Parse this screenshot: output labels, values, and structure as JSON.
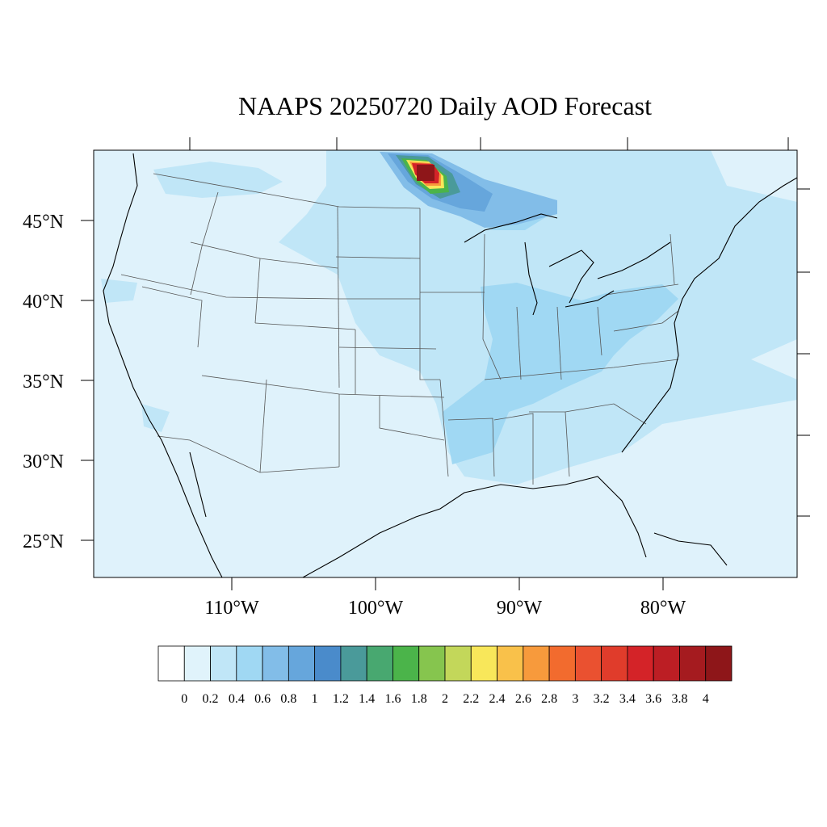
{
  "title": "NAAPS 20250720 Daily AOD Forecast",
  "map": {
    "lat_labels": [
      {
        "value": 45,
        "label": "45°N"
      },
      {
        "value": 40,
        "label": "40°N"
      },
      {
        "value": 35,
        "label": "35°N"
      },
      {
        "value": 30,
        "label": "30°N"
      },
      {
        "value": 25,
        "label": "25°N"
      }
    ],
    "lon_labels": [
      {
        "value": -110,
        "label": "110°W"
      },
      {
        "value": -100,
        "label": "100°W"
      },
      {
        "value": -90,
        "label": "90°W"
      },
      {
        "value": -80,
        "label": "80°W"
      }
    ],
    "plume_peak_aod": 4.0,
    "background_aod": 0.1,
    "colors": {
      "land_background": "#dff2fb",
      "coastline": "#000000",
      "state_lines": "#555555"
    }
  },
  "colorbar": {
    "labels": [
      "0",
      "0.2",
      "0.4",
      "0.6",
      "0.8",
      "1",
      "1.2",
      "1.4",
      "1.6",
      "1.8",
      "2",
      "2.2",
      "2.4",
      "2.6",
      "2.8",
      "3",
      "3.2",
      "3.4",
      "3.6",
      "3.8",
      "4"
    ],
    "colors": [
      "#ffffff",
      "#e0f3fb",
      "#c0e6f7",
      "#a0d8f3",
      "#82bde8",
      "#66a6dc",
      "#4a8bcb",
      "#4a9a9a",
      "#48a870",
      "#4bb44a",
      "#86c54e",
      "#c3d75a",
      "#f8e75a",
      "#f9c14a",
      "#f79a3c",
      "#f26b2e",
      "#ea5130",
      "#e03c2b",
      "#d42328",
      "#bc1e24",
      "#a51b1f",
      "#8e1619"
    ]
  }
}
